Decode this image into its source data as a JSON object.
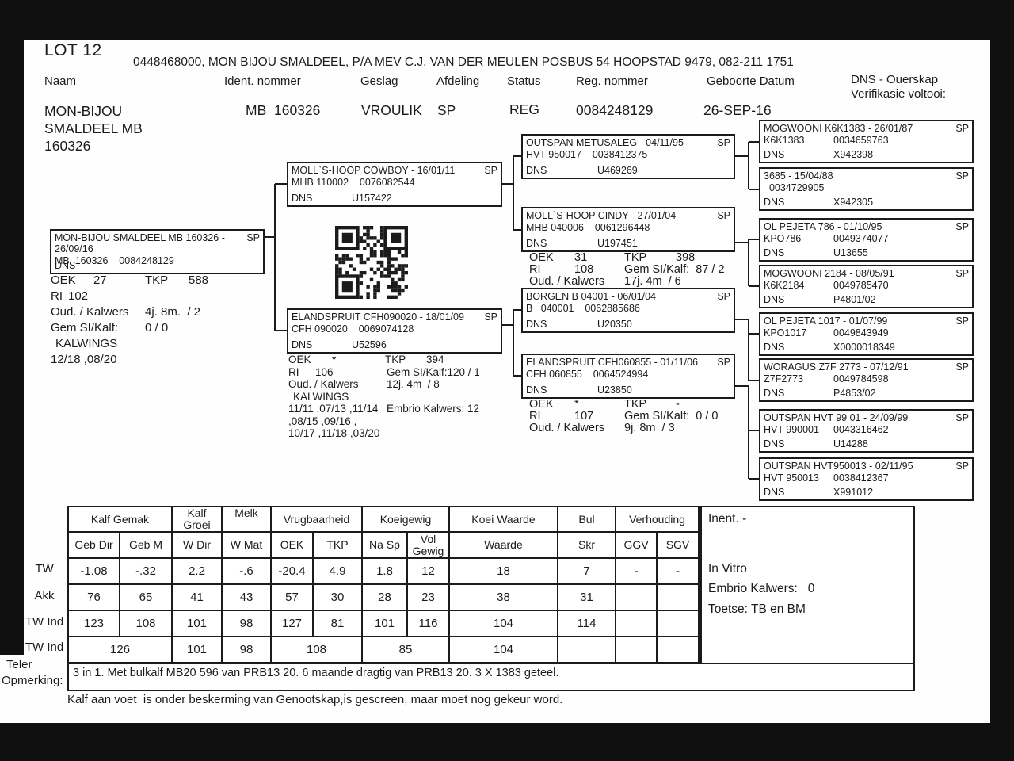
{
  "meta": {
    "lot": "LOT 12",
    "owner_line": "0448468000, MON BIJOU SMALDEEL, P/A MEV C.J. VAN DER MEULEN POSBUS 54 HOOPSTAD 9479, 082-211 1751"
  },
  "id_header": {
    "naam_label": "Naam",
    "ident_label": "Ident. nommer",
    "geslag_label": "Geslag",
    "afdeling_label": "Afdeling",
    "status_label": "Status",
    "reg_label": "Reg. nommer",
    "geboorte_label": "Geboorte Datum",
    "dns_label_line1": "DNS - Ouerskap",
    "dns_label_line2": "Verifikasie voltooi:",
    "naam": "MON-BIJOU SMALDEEL MB 160326",
    "ident": "MB  160326",
    "geslag": "VROULIK",
    "afdeling": "SP",
    "status": "REG",
    "reg": "0084248129",
    "geboorte": "26-SEP-16"
  },
  "pedigree": {
    "sp": "SP",
    "dns": "DNS",
    "subject": {
      "title": "MON-BIJOU SMALDEEL MB  160326 - 26/09/16",
      "ids": "MB  160326    0084248129",
      "dns_value": "-"
    },
    "subject_stats": {
      "oek_label": "OEK",
      "oek": "27",
      "tkp_label": "TKP",
      "tkp": "588",
      "ri_label": "RI",
      "ri": "102",
      "oud_label": "Oud. / Kalwers",
      "oud": "4j. 8m.  / 2",
      "gem_label": "Gem SI/Kalf:",
      "gem": "0 / 0",
      "kalwings_label": "KALWINGS",
      "kalwings": "12/18 ,08/20"
    },
    "sire": {
      "title": "MOLL`S-HOOP COWBOY - 16/01/11",
      "ids": "MHB 110002    0076082544",
      "dns_value": "U157422"
    },
    "dam": {
      "title": "ELANDSPRUIT CFH090020 - 18/01/09",
      "ids": "CFH 090020    0069074128",
      "dns_value": "U52596"
    },
    "dam_stats": {
      "oek_label": "OEK",
      "oek": "*",
      "tkp_label": "TKP",
      "tkp": "394",
      "ri_label": "RI",
      "ri": "106",
      "gem": "Gem SI/Kalf:120 / 1",
      "oud_label": "Oud. / Kalwers",
      "oud": "12j. 4m  / 8",
      "kalwings_label": "KALWINGS",
      "kalwings_1": "11/11 ,07/13 ,11/14",
      "embrio": "Embrio Kalwers: 12",
      "kalwings_2": ",08/15 ,09/16 ,",
      "kalwings_3": "10/17 ,11/18 ,03/20"
    },
    "gen2": [
      {
        "title": "OUTSPAN METUSALEG - 04/11/95",
        "ids": "HVT 950017    0038412375",
        "dns_value": "U469269"
      },
      {
        "title": "MOLL`S-HOOP CINDY - 27/01/04",
        "ids": "MHB 040006    0061296448",
        "dns_value": "U197451"
      },
      {
        "title": "BORGEN B 04001 - 06/01/04",
        "ids": "B   040001    0062885686",
        "dns_value": "U20350"
      },
      {
        "title": "ELANDSPRUIT CFH060855 - 01/11/06",
        "ids": "CFH 060855    0064524994",
        "dns_value": "U23850"
      }
    ],
    "cindy_stats": {
      "oek_label": "OEK",
      "oek": "31",
      "tkp_label": "TKP",
      "tkp": "398",
      "ri_label": "RI",
      "ri": "108",
      "gem": "Gem SI/Kalf:  87 / 2",
      "oud_label": "Oud. / Kalwers",
      "oud": "17j. 4m  / 6"
    },
    "granddam2_stats": {
      "oek_label": "OEK",
      "oek": "*",
      "tkp_label": "TKP",
      "tkp": "-",
      "ri_label": "RI",
      "ri": "107",
      "gem": "Gem SI/Kalf:  0 / 0",
      "oud_label": "Oud. / Kalwers",
      "oud": "9j. 8m  / 3"
    },
    "gen3": [
      {
        "title": "MOGWOONI K6K1383 - 26/01/87",
        "id": "K6K1383",
        "num": "0034659763",
        "dns_value": "X942398"
      },
      {
        "title": "3685 - 15/04/88",
        "id": "  0034729905",
        "num": "",
        "dns_value": "X942305"
      },
      {
        "title": "OL PEJETA 786 - 01/10/95",
        "id": "KPO786",
        "num": "0049374077",
        "dns_value": "U13655"
      },
      {
        "title": "MOGWOONI 2184 - 08/05/91",
        "id": "K6K2184",
        "num": "0049785470",
        "dns_value": "P4801/02"
      },
      {
        "title": "OL PEJETA 1017 - 01/07/99",
        "id": "KPO1017",
        "num": "0049843949",
        "dns_value": "X0000018349"
      },
      {
        "title": "WORAGUS Z7F 2773 - 07/12/91",
        "id": "Z7F2773",
        "num": "0049784598",
        "dns_value": "P4853/02"
      },
      {
        "title": "OUTSPAN HVT 99 01 - 24/09/99",
        "id": "HVT 990001",
        "num": "0043316462",
        "dns_value": "U14288"
      },
      {
        "title": "OUTSPAN HVT950013 - 02/11/95",
        "id": "HVT 950013",
        "num": "0038412367",
        "dns_value": "X991012"
      }
    ]
  },
  "table": {
    "groups": {
      "kalf_gemak": "Kalf Gemak",
      "kalf_groei": "Kalf Groei",
      "melk": "Melk",
      "vrugbaarheid": "Vrugbaarheid",
      "koeigewig": "Koeigewig",
      "koei_waarde": "Koei Waarde",
      "bul": "Bul",
      "verhouding": "Verhouding"
    },
    "cols": [
      "Geb Dir",
      "Geb M",
      "W Dir",
      "W Mat",
      "OEK",
      "TKP",
      "Na Sp",
      "Vol Gewig",
      "Waarde",
      "Skr",
      "GGV",
      "SGV"
    ],
    "row_labels": [
      "TW",
      "Akk",
      "TW Ind",
      "TW Ind"
    ],
    "tw": [
      "-1.08",
      "-.32",
      "2.2",
      "-.6",
      "-20.4",
      "4.9",
      "1.8",
      "12",
      "18",
      "7",
      "-",
      "-"
    ],
    "akk": [
      "76",
      "65",
      "41",
      "43",
      "57",
      "30",
      "28",
      "23",
      "38",
      "31",
      "",
      ""
    ],
    "tw_ind": [
      "123",
      "108",
      "101",
      "98",
      "127",
      "81",
      "101",
      "116",
      "104",
      "114",
      "",
      ""
    ],
    "tw_ind2": [
      "126",
      "101",
      "98",
      "108",
      "85",
      "104",
      "",
      "",
      ""
    ]
  },
  "side_panel": {
    "inent": "Inent. -",
    "in_vitro": "In Vitro",
    "embrio": "Embrio Kalwers:   0",
    "toetse": "Toetse: TB en BM"
  },
  "remarks": {
    "label_line1": "Teler",
    "label_line2": "Opmerking:",
    "text": "3 in 1. Met bulkalf MB20 596 van PRB13 20. 6 maande dragtig van PRB13 20. 3 X 1383 geteel.",
    "footer": "Kalf aan voet  is onder beskerming van Genootskap,is gescreen, maar moet nog gekeur word."
  }
}
